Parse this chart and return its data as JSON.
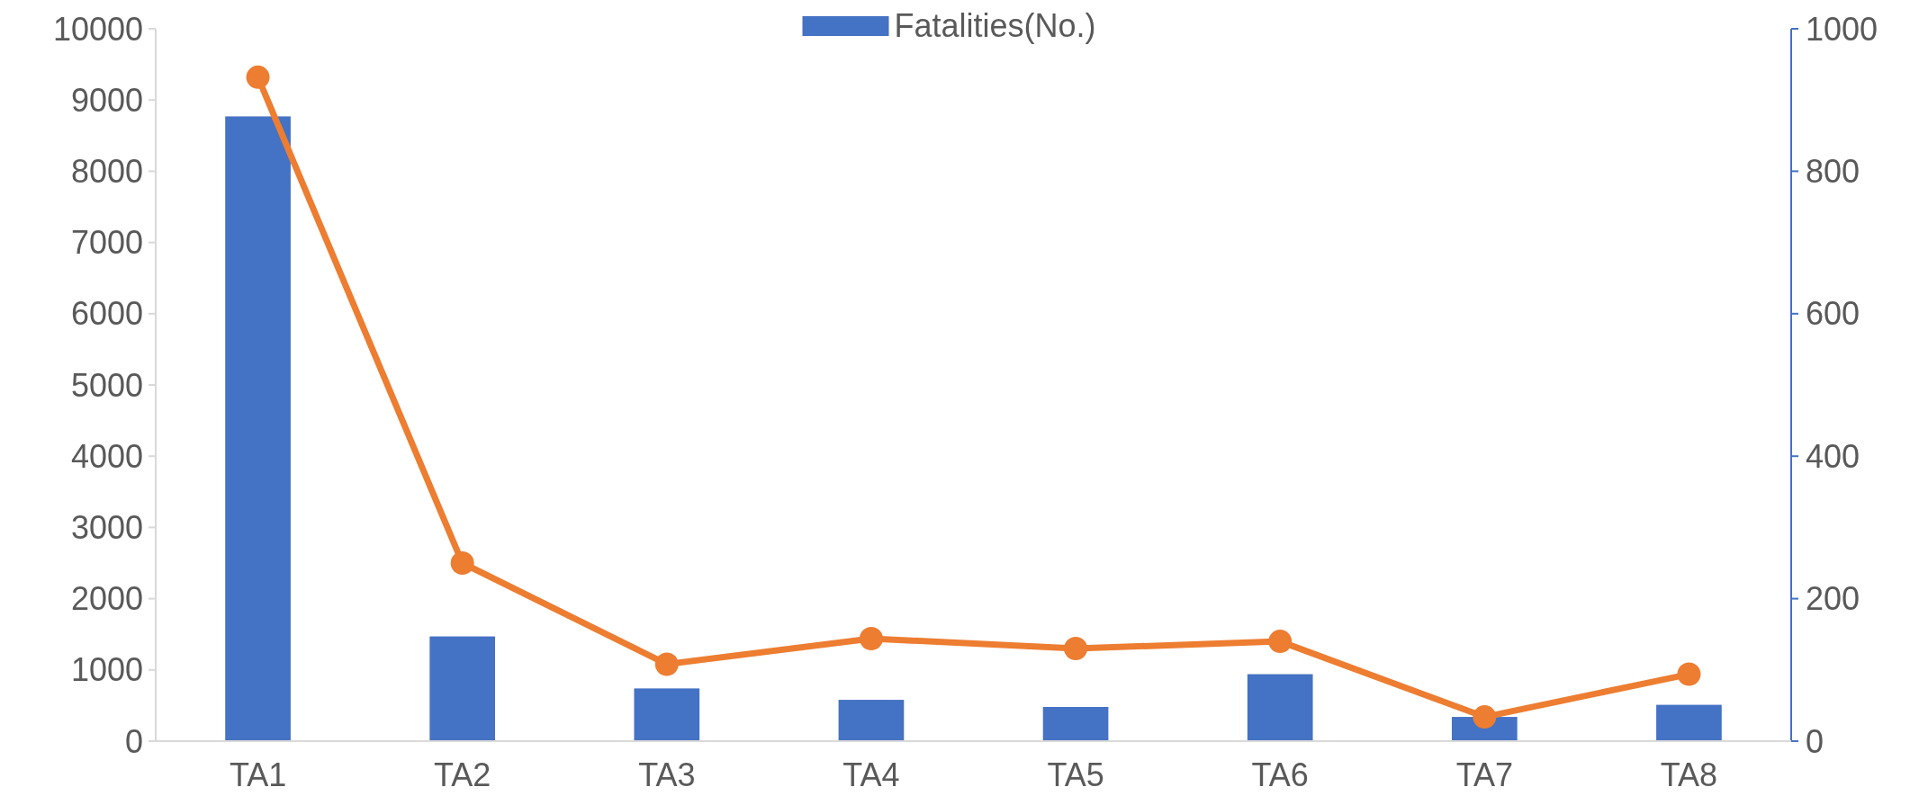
{
  "chart_data": {
    "type": "bar",
    "categories": [
      "TA1",
      "TA2",
      "TA3",
      "TA4",
      "TA5",
      "TA6",
      "TA7",
      "TA8"
    ],
    "series": [
      {
        "name": "Fatalities(No.)",
        "color": "#4472c4",
        "values": [
          8770,
          1470,
          740,
          580,
          480,
          940,
          340,
          510
        ]
      },
      {
        "type": "line",
        "axis": "y2",
        "color": "#ed7d31",
        "values": [
          932,
          250,
          108,
          144,
          130,
          140,
          34,
          94
        ]
      }
    ],
    "ylim": [
      0,
      10000
    ],
    "yticks": [
      0,
      1000,
      2000,
      3000,
      4000,
      5000,
      6000,
      7000,
      8000,
      9000,
      10000
    ],
    "y2lim": [
      0,
      1000
    ],
    "y2ticks": [
      0,
      200,
      400,
      600,
      800,
      1000
    ],
    "legend": "top",
    "marker": "circle",
    "line_style": "solid",
    "grid": false
  }
}
